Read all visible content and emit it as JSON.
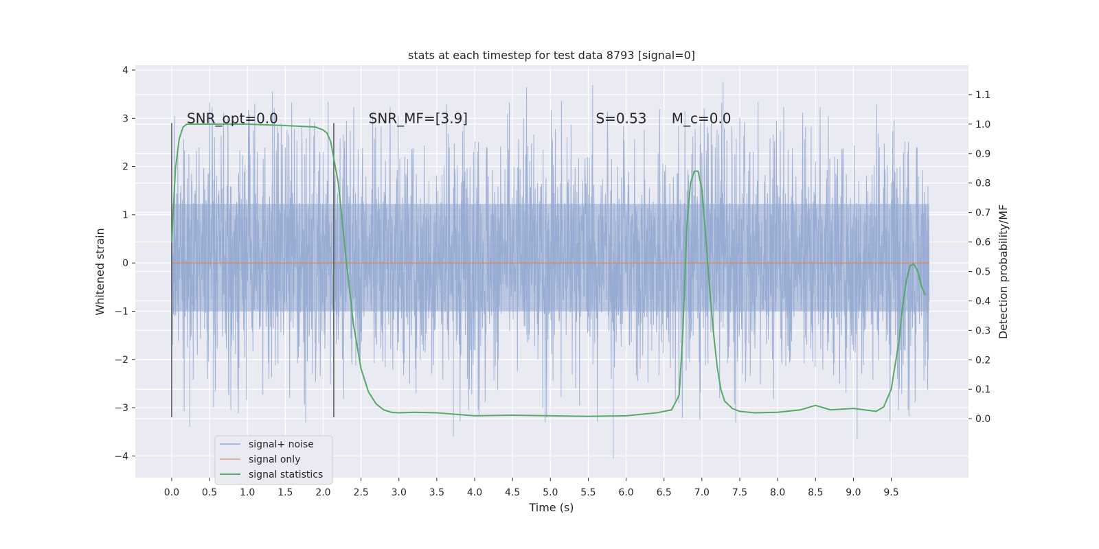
{
  "chart_data": {
    "type": "line",
    "title": "stats at each timestep for test data 8793 [signal=0]",
    "xlabel": "Time (s)",
    "ylabel_left": "Whitened strain",
    "ylabel_right": "Detection probability/MF",
    "xlim": [
      -0.48,
      10.52
    ],
    "ylim_left": [
      -4.45,
      4.1
    ],
    "ylim_right": [
      -0.2,
      1.2
    ],
    "xticks": [
      "0.0",
      "0.5",
      "1.0",
      "1.5",
      "2.0",
      "2.5",
      "3.0",
      "3.5",
      "4.0",
      "4.5",
      "5.0",
      "5.5",
      "6.0",
      "6.5",
      "7.0",
      "7.5",
      "8.0",
      "8.5",
      "9.0",
      "9.5"
    ],
    "yticks_left": [
      "−4",
      "−3",
      "−2",
      "−1",
      "0",
      "1",
      "2",
      "3",
      "4"
    ],
    "yticks_right": [
      "0.0",
      "0.1",
      "0.2",
      "0.3",
      "0.4",
      "0.5",
      "0.6",
      "0.7",
      "0.8",
      "0.9",
      "1.0",
      "1.1"
    ],
    "grid": true,
    "legend_position": "lower-left",
    "annotations": [
      {
        "name": "snr-opt",
        "text": "SNR_opt=0.0",
        "x": 0.2,
        "y": 2.9
      },
      {
        "name": "snr-mf",
        "text": "SNR_MF=[3.9]",
        "x": 2.6,
        "y": 2.9
      },
      {
        "name": "s-value",
        "text": "S=0.53",
        "x": 5.6,
        "y": 2.9
      },
      {
        "name": "mc-value",
        "text": "M_c=0.0",
        "x": 6.6,
        "y": 2.9
      }
    ],
    "vertical_markers": [
      {
        "x": 0.0,
        "y_range": [
          -3.2,
          2.9
        ]
      },
      {
        "x": 2.14,
        "y_range": [
          -3.2,
          2.9
        ]
      }
    ],
    "series": [
      {
        "name": "signal+ noise",
        "axis": "left",
        "color": "#92a8d1",
        "style": "noise",
        "x_range": [
          0.0,
          10.0
        ],
        "typical_range": [
          -1.4,
          1.7
        ],
        "extremes": [
          -4.05,
          3.75
        ]
      },
      {
        "name": "signal only",
        "axis": "left",
        "color": "#dd8452",
        "x": [
          0.0,
          10.0
        ],
        "y": [
          0.0,
          0.0
        ]
      },
      {
        "name": "signal statistics",
        "axis": "right",
        "color": "#55a868",
        "x": [
          0.0,
          0.05,
          0.1,
          0.15,
          0.2,
          0.3,
          0.5,
          1.0,
          1.5,
          1.9,
          2.0,
          2.05,
          2.1,
          2.2,
          2.3,
          2.4,
          2.5,
          2.6,
          2.7,
          2.8,
          2.9,
          3.0,
          3.2,
          3.5,
          4.0,
          4.5,
          5.0,
          5.5,
          6.0,
          6.4,
          6.6,
          6.7,
          6.75,
          6.8,
          6.85,
          6.9,
          6.95,
          7.0,
          7.05,
          7.1,
          7.15,
          7.2,
          7.25,
          7.3,
          7.4,
          7.5,
          7.7,
          8.0,
          8.3,
          8.5,
          8.7,
          9.0,
          9.3,
          9.4,
          9.5,
          9.6,
          9.65,
          9.7,
          9.75,
          9.8,
          9.85,
          9.9,
          9.95
        ],
        "y": [
          0.6,
          0.85,
          0.95,
          0.99,
          1.0,
          1.0,
          1.0,
          1.0,
          0.995,
          0.99,
          0.98,
          0.97,
          0.94,
          0.8,
          0.55,
          0.32,
          0.17,
          0.09,
          0.05,
          0.03,
          0.022,
          0.02,
          0.022,
          0.02,
          0.01,
          0.012,
          0.01,
          0.008,
          0.01,
          0.02,
          0.03,
          0.08,
          0.3,
          0.65,
          0.8,
          0.84,
          0.84,
          0.78,
          0.62,
          0.45,
          0.3,
          0.18,
          0.1,
          0.06,
          0.035,
          0.025,
          0.02,
          0.022,
          0.03,
          0.045,
          0.03,
          0.035,
          0.025,
          0.04,
          0.1,
          0.26,
          0.38,
          0.47,
          0.52,
          0.525,
          0.5,
          0.45,
          0.42
        ]
      }
    ]
  }
}
